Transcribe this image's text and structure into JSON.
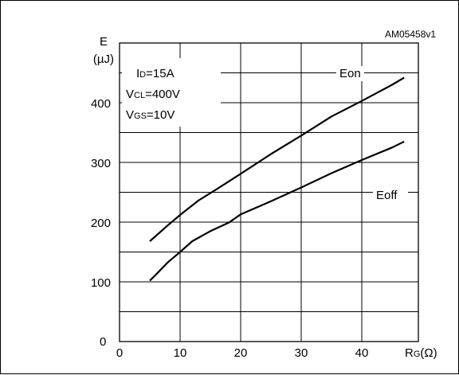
{
  "chart_data": {
    "type": "line",
    "figure_id": "AM05458v1",
    "ylabel_symbol": "E",
    "ylabel_unit": "(µJ)",
    "xlabel_main": "R",
    "xlabel_sub": "G",
    "xlabel_unit": "(Ω)",
    "xlim": [
      0,
      50
    ],
    "ylim": [
      0,
      500
    ],
    "x_ticks": [
      0,
      10,
      20,
      30,
      40
    ],
    "y_ticks": [
      100,
      200,
      300,
      400
    ],
    "y_tick_zero": "0",
    "x_grid": [
      10,
      20,
      30,
      40
    ],
    "y_grid": [
      50,
      100,
      150,
      200,
      250,
      300,
      350,
      400,
      450
    ],
    "grid": true,
    "conditions": [
      {
        "main": "I",
        "sub": "D",
        "value": "=15A"
      },
      {
        "main": "V",
        "sub": "CL",
        "value": "=400V"
      },
      {
        "main": "V",
        "sub": "GS",
        "value": "=10V"
      }
    ],
    "series": [
      {
        "name": "Eon",
        "x": [
          5,
          8,
          10,
          13,
          16,
          20,
          25,
          30,
          35,
          40,
          45,
          47
        ],
        "y": [
          168,
          195,
          212,
          236,
          255,
          281,
          314,
          345,
          377,
          403,
          430,
          442
        ]
      },
      {
        "name": "Eoff",
        "x": [
          5,
          6,
          8,
          10,
          12,
          15,
          18,
          20,
          25,
          30,
          35,
          40,
          45,
          47
        ],
        "y": [
          102,
          112,
          133,
          150,
          168,
          185,
          199,
          213,
          235,
          258,
          282,
          304,
          325,
          335
        ]
      }
    ]
  }
}
